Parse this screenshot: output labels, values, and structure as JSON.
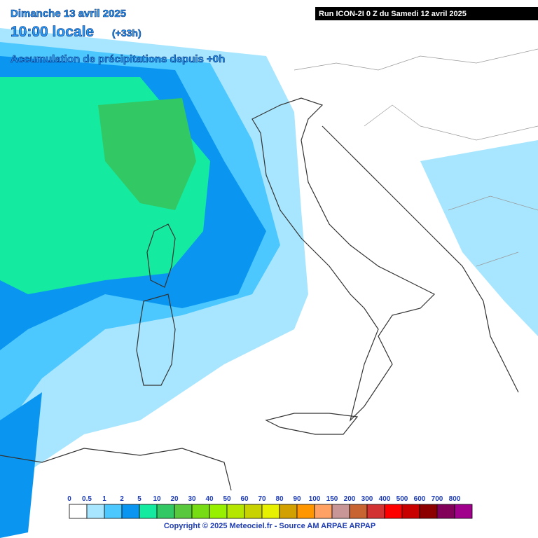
{
  "header": {
    "date": "Dimanche 13 avril 2025",
    "time": "10:00 locale",
    "lead": "(+33h)",
    "product": "Accumulation de précipitations depuis +0h",
    "run": "Run ICON-2I 0 Z du Samedi 12 avril 2025"
  },
  "legend": {
    "items": [
      {
        "label": "0",
        "color": "#ffffff"
      },
      {
        "label": "0.5",
        "color": "#a8e6ff"
      },
      {
        "label": "1",
        "color": "#4cc8ff"
      },
      {
        "label": "2",
        "color": "#0a96f0"
      },
      {
        "label": "5",
        "color": "#14eba0"
      },
      {
        "label": "10",
        "color": "#32c864"
      },
      {
        "label": "20",
        "color": "#5ac83c"
      },
      {
        "label": "30",
        "color": "#78dc14"
      },
      {
        "label": "40",
        "color": "#96f000"
      },
      {
        "label": "50",
        "color": "#b4e600"
      },
      {
        "label": "60",
        "color": "#c8d200"
      },
      {
        "label": "70",
        "color": "#e6f000"
      },
      {
        "label": "80",
        "color": "#d2a000"
      },
      {
        "label": "90",
        "color": "#ff9600"
      },
      {
        "label": "100",
        "color": "#ffa064"
      },
      {
        "label": "150",
        "color": "#c89696"
      },
      {
        "label": "200",
        "color": "#c86432"
      },
      {
        "label": "300",
        "color": "#d23232"
      },
      {
        "label": "400",
        "color": "#ff0000"
      },
      {
        "label": "500",
        "color": "#c80000"
      },
      {
        "label": "600",
        "color": "#8c0000"
      },
      {
        "label": "700",
        "color": "#82005a"
      },
      {
        "label": "800",
        "color": "#a0008c"
      }
    ]
  },
  "footer": {
    "copyright": "Copyright © 2025 Meteociel.fr - Source AM ARPAE ARPAP"
  }
}
